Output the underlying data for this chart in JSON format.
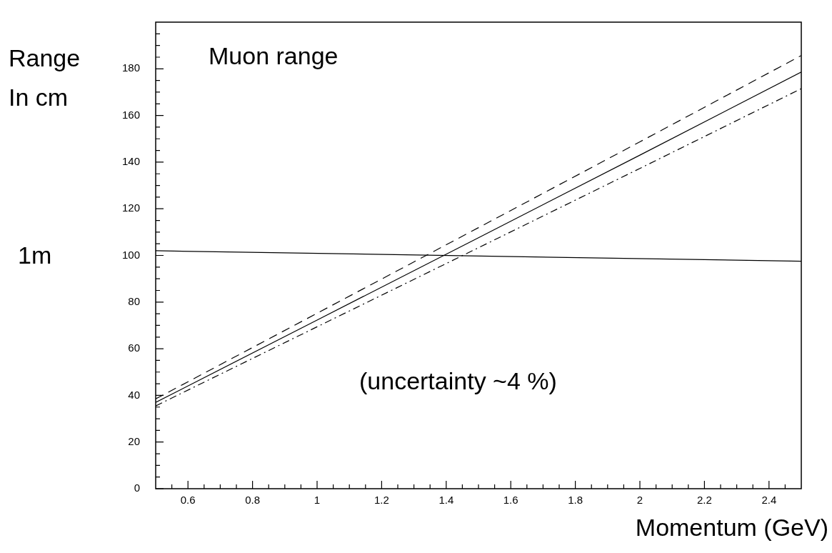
{
  "chart_data": {
    "type": "line",
    "title": "Muon range",
    "xlabel": "Momentum (GeV)",
    "ylabel": "Range In cm",
    "annotations": [
      "1m",
      "(uncertainty ~4 %)"
    ],
    "x": [
      0.5,
      1,
      1.5,
      2,
      2.5
    ],
    "series": [
      {
        "color": "#000000",
        "values": [
          37,
          72.3,
          107.6,
          143,
          178.6
        ],
        "line_style": "solid"
      },
      {
        "color": "#000000",
        "values": [
          38.5,
          75.2,
          111.9,
          148.7,
          185.7
        ],
        "line_style": "dashed"
      },
      {
        "color": "#000000",
        "values": [
          35.5,
          69.4,
          103.3,
          137.3,
          171.5
        ],
        "line_style": "dashdot"
      },
      {
        "color": "#000000",
        "x": [
          0.5,
          2.5
        ],
        "values": [
          102,
          97.5
        ],
        "line_style": "solid"
      }
    ],
    "xlim": [
      0.5,
      2.5
    ],
    "ylim": [
      0,
      200
    ],
    "xticks": [
      {
        "value": 0.55,
        "label": null
      },
      0.6,
      {
        "value": 0.65,
        "label": null
      },
      {
        "value": 0.7,
        "label": null
      },
      {
        "value": 0.75,
        "label": null
      },
      0.8,
      {
        "value": 0.85,
        "label": null
      },
      {
        "value": 0.9,
        "label": null
      },
      {
        "value": 0.95,
        "label": null
      },
      1,
      {
        "value": 1.05,
        "label": null
      },
      {
        "value": 1.1,
        "label": null
      },
      {
        "value": 1.15,
        "label": null
      },
      1.2,
      {
        "value": 1.25,
        "label": null
      },
      {
        "value": 1.3,
        "label": null
      },
      {
        "value": 1.35,
        "label": null
      },
      1.4,
      {
        "value": 1.45,
        "label": null
      },
      {
        "value": 1.5,
        "label": null
      },
      {
        "value": 1.55,
        "label": null
      },
      1.6,
      {
        "value": 1.65,
        "label": null
      },
      {
        "value": 1.7,
        "label": null
      },
      {
        "value": 1.75,
        "label": null
      },
      1.8,
      {
        "value": 1.85,
        "label": null
      },
      {
        "value": 1.9,
        "label": null
      },
      {
        "value": 1.95,
        "label": null
      },
      2,
      {
        "value": 2.05,
        "label": null
      },
      {
        "value": 2.1,
        "label": null
      },
      {
        "value": 2.15,
        "label": null
      },
      2.2,
      {
        "value": 2.25,
        "label": null
      },
      {
        "value": 2.3,
        "label": null
      },
      {
        "value": 2.35,
        "label": null
      },
      2.4,
      {
        "value": 2.45,
        "label": null
      }
    ],
    "yticks": [
      0,
      {
        "value": 5,
        "label": null
      },
      {
        "value": 10,
        "label": null
      },
      {
        "value": 15,
        "label": null
      },
      20,
      {
        "value": 25,
        "label": null
      },
      {
        "value": 30,
        "label": null
      },
      {
        "value": 35,
        "label": null
      },
      40,
      {
        "value": 45,
        "label": null
      },
      {
        "value": 50,
        "label": null
      },
      {
        "value": 55,
        "label": null
      },
      60,
      {
        "value": 65,
        "label": null
      },
      {
        "value": 70,
        "label": null
      },
      {
        "value": 75,
        "label": null
      },
      80,
      {
        "value": 85,
        "label": null
      },
      {
        "value": 90,
        "label": null
      },
      {
        "value": 95,
        "label": null
      },
      100,
      {
        "value": 105,
        "label": null
      },
      {
        "value": 110,
        "label": null
      },
      {
        "value": 115,
        "label": null
      },
      120,
      {
        "value": 125,
        "label": null
      },
      {
        "value": 130,
        "label": null
      },
      {
        "value": 135,
        "label": null
      },
      140,
      {
        "value": 145,
        "label": null
      },
      {
        "value": 150,
        "label": null
      },
      {
        "value": 155,
        "label": null
      },
      160,
      {
        "value": 165,
        "label": null
      },
      {
        "value": 170,
        "label": null
      },
      {
        "value": 175,
        "label": null
      },
      180,
      {
        "value": 185,
        "label": null
      },
      {
        "value": 190,
        "label": null
      },
      {
        "value": 195,
        "label": null
      }
    ],
    "grid": false,
    "legend": false,
    "marker": "none"
  }
}
